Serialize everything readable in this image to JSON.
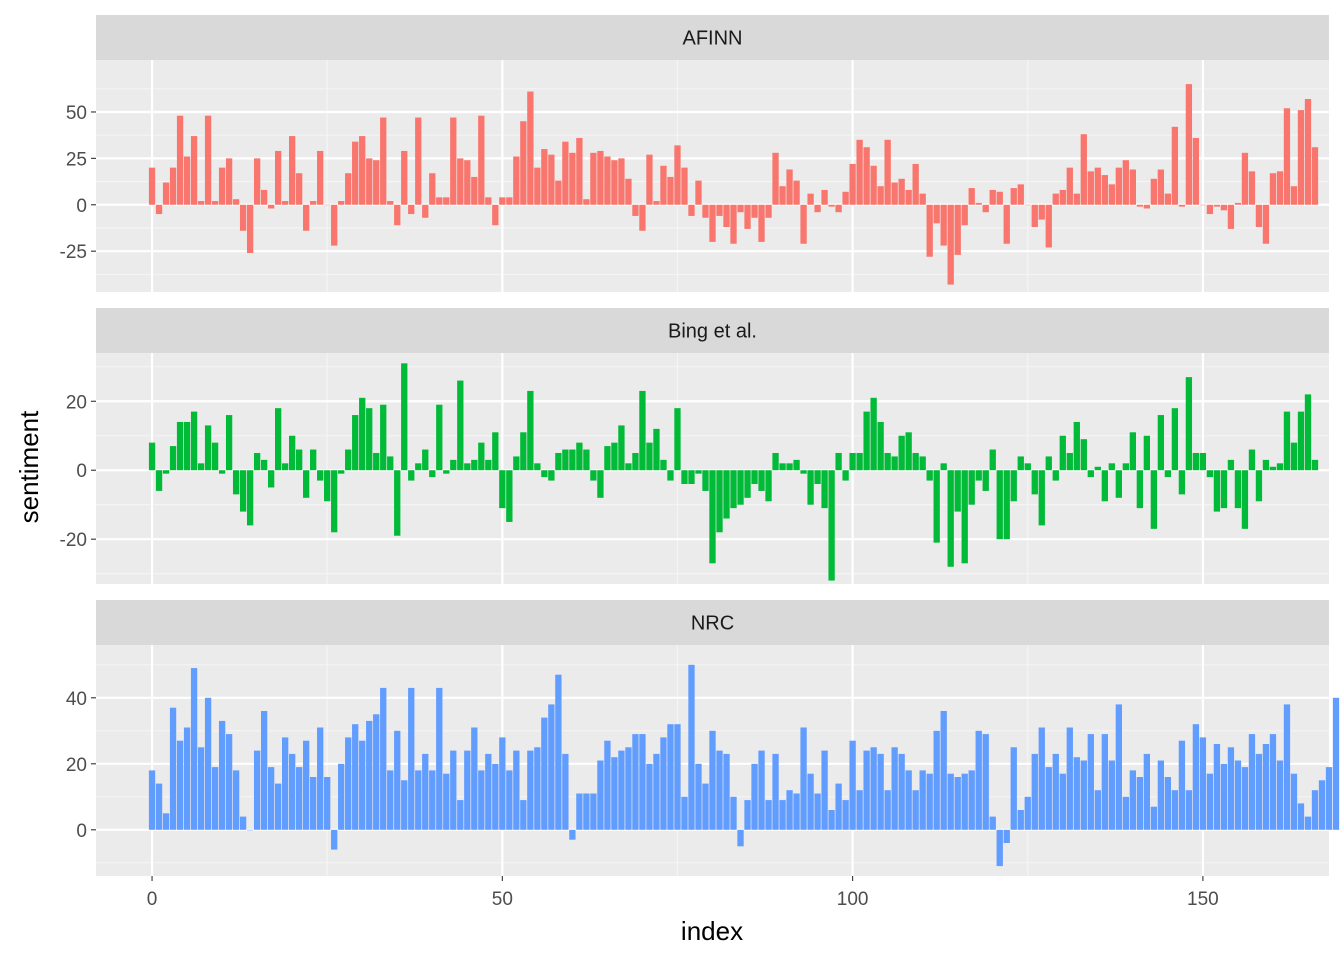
{
  "chart_data": {
    "type": "bar",
    "facet_direction": "vertical",
    "xlabel": "index",
    "ylabel": "sentiment",
    "xlim": [
      -8,
      168
    ],
    "x_ticks": [
      0,
      50,
      100,
      150
    ],
    "x_tick_labels": [
      "0",
      "50",
      "100",
      "150"
    ],
    "grid": true,
    "legend": "none",
    "panels": [
      {
        "name": "AFINN",
        "color": "#F8766D",
        "ylim": [
          -47,
          78
        ],
        "y_ticks": [
          -25,
          0,
          25,
          50
        ],
        "y_tick_labels": [
          "-25",
          "0",
          "25",
          "50"
        ],
        "values": [
          20,
          -5,
          12,
          20,
          48,
          26,
          37,
          2,
          48,
          2,
          20,
          25,
          3,
          -14,
          -26,
          25,
          8,
          -2,
          29,
          2,
          37,
          17,
          -14,
          2,
          29,
          0,
          -22,
          2,
          17,
          34,
          37,
          25,
          24,
          47,
          2,
          -11,
          29,
          -5,
          47,
          -7,
          17,
          4,
          4,
          47,
          25,
          24,
          15,
          48,
          4,
          -11,
          4,
          4,
          26,
          45,
          61,
          20,
          30,
          27,
          13,
          34,
          28,
          36,
          3,
          28,
          29,
          26,
          24,
          25,
          14,
          -6,
          -14,
          27,
          2,
          21,
          15,
          32,
          20,
          -6,
          13,
          -7,
          -20,
          -6,
          -12,
          -21,
          -4,
          -13,
          -7,
          -20,
          -7,
          28,
          10,
          19,
          13,
          -21,
          6,
          -4,
          8,
          -1,
          -4,
          7,
          22,
          35,
          31,
          21,
          10,
          35,
          12,
          14,
          8,
          22,
          6,
          -28,
          -10,
          -22,
          -43,
          -27,
          -11,
          9,
          1,
          -4,
          8,
          7,
          -21,
          9,
          11,
          0,
          -12,
          -8,
          -23,
          6,
          8,
          20,
          6,
          38,
          18,
          20,
          16,
          11,
          20,
          24,
          19,
          -1,
          -2,
          14,
          19,
          6,
          42,
          -1,
          65,
          36,
          0,
          -5,
          -1,
          -3,
          -13,
          1,
          28,
          18,
          -12,
          -21,
          17,
          18,
          52,
          10,
          51,
          57,
          31
        ]
      },
      {
        "name": "Bing et al.",
        "color": "#00BA38",
        "ylim": [
          -33,
          34
        ],
        "y_ticks": [
          -20,
          0,
          20
        ],
        "y_tick_labels": [
          "-20",
          "0",
          "20"
        ],
        "values": [
          8,
          -6,
          -1,
          7,
          14,
          14,
          17,
          2,
          13,
          8,
          -1,
          16,
          -7,
          -12,
          -16,
          5,
          3,
          -5,
          18,
          2,
          10,
          6,
          -8,
          6,
          -3,
          -9,
          -18,
          -1,
          6,
          16,
          21,
          18,
          5,
          19,
          4,
          -19,
          31,
          -3,
          2,
          6,
          -2,
          19,
          -1,
          3,
          26,
          2,
          3,
          8,
          3,
          11,
          -11,
          -15,
          4,
          11,
          23,
          2,
          -2,
          -3,
          5,
          6,
          6,
          8,
          6,
          -3,
          -8,
          7,
          8,
          13,
          2,
          5,
          23,
          8,
          12,
          3,
          -3,
          18,
          -4,
          -4,
          -1,
          -6,
          -27,
          -18,
          -14,
          -11,
          -10,
          -8,
          -4,
          -6,
          -9,
          5,
          2,
          2,
          3,
          -1,
          -10,
          -4,
          -11,
          -32,
          5,
          -3,
          5,
          5,
          17,
          21,
          14,
          5,
          4,
          10,
          11,
          5,
          4,
          -3,
          -21,
          2,
          -28,
          -12,
          -27,
          -10,
          -3,
          -6,
          6,
          -20,
          -20,
          -9,
          4,
          2,
          -7,
          -16,
          4,
          -3,
          10,
          5,
          14,
          9,
          -2,
          1,
          -9,
          2,
          -8,
          2,
          11,
          -11,
          10,
          -17,
          16,
          -2,
          18,
          -7,
          27,
          5,
          5,
          -2,
          -12,
          -11,
          3,
          -11,
          -17,
          6,
          -9,
          3,
          1,
          2,
          17,
          8,
          17,
          22,
          3
        ]
      },
      {
        "name": "NRC",
        "color": "#619CFF",
        "ylim": [
          -14,
          56
        ],
        "y_ticks": [
          0,
          20,
          40
        ],
        "y_tick_labels": [
          "0",
          "20",
          "40"
        ],
        "values": [
          18,
          14,
          5,
          37,
          27,
          31,
          49,
          25,
          40,
          19,
          33,
          29,
          18,
          4,
          0,
          24,
          36,
          19,
          14,
          28,
          23,
          19,
          27,
          16,
          31,
          16,
          -6,
          20,
          28,
          32,
          27,
          33,
          35,
          43,
          18,
          30,
          15,
          43,
          18,
          23,
          18,
          43,
          17,
          24,
          9,
          24,
          31,
          18,
          23,
          20,
          28,
          18,
          24,
          9,
          24,
          25,
          34,
          38,
          47,
          23,
          -3,
          11,
          11,
          11,
          21,
          27,
          22,
          24,
          25,
          29,
          29,
          20,
          23,
          28,
          32,
          32,
          10,
          50,
          20,
          14,
          30,
          24,
          23,
          10,
          -5,
          9,
          20,
          24,
          9,
          23,
          9,
          12,
          11,
          31,
          17,
          11,
          24,
          6,
          14,
          9,
          27,
          12,
          24,
          25,
          23,
          12,
          25,
          23,
          18,
          12,
          18,
          17,
          30,
          36,
          17,
          16,
          17,
          18,
          30,
          29,
          4,
          -11,
          -4,
          25,
          6,
          10,
          23,
          31,
          19,
          23,
          17,
          31,
          22,
          21,
          29,
          12,
          29,
          21,
          38,
          10,
          18,
          16,
          23,
          7,
          21,
          16,
          12,
          27,
          12,
          32,
          28,
          17,
          26,
          20,
          25,
          21,
          19,
          29,
          23,
          26,
          29,
          21,
          38,
          17,
          8,
          4,
          12,
          15,
          19,
          40
        ]
      }
    ]
  }
}
